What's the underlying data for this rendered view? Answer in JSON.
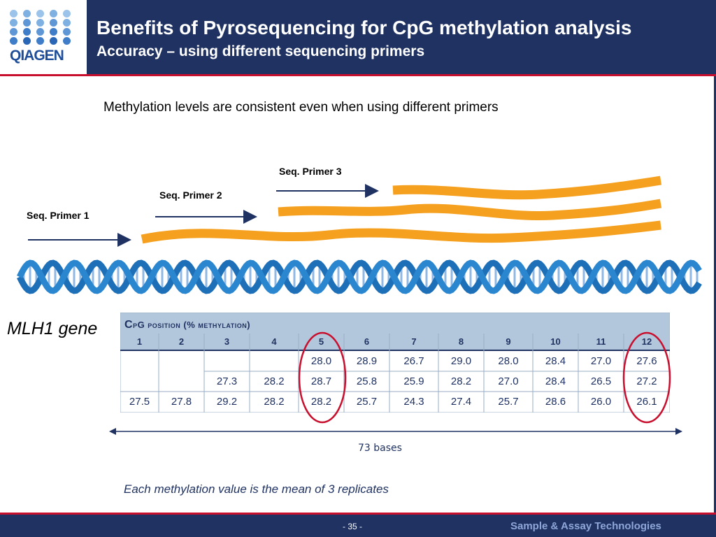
{
  "header": {
    "logo_text": "QIAGEN",
    "title": "Benefits of Pyrosequencing for CpG methylation analysis",
    "subtitle": "Accuracy – using different sequencing primers"
  },
  "intro_text": "Methylation levels are consistent even when using different primers",
  "primers": [
    {
      "label": "Seq. Primer 1"
    },
    {
      "label": "Seq. Primer 2"
    },
    {
      "label": "Seq. Primer 3"
    }
  ],
  "gene_label": "MLH1 gene",
  "table": {
    "caption_prefix": "C",
    "caption_rest": "pG position (% methylation)",
    "positions": [
      "1",
      "2",
      "3",
      "4",
      "5",
      "6",
      "7",
      "8",
      "9",
      "10",
      "11",
      "12"
    ],
    "rows": [
      [
        "",
        "",
        "",
        "",
        "28.0",
        "28.9",
        "26.7",
        "29.0",
        "28.0",
        "28.4",
        "27.0",
        "27.6"
      ],
      [
        "",
        "",
        "27.3",
        "28.2",
        "28.7",
        "25.8",
        "25.9",
        "28.2",
        "27.0",
        "28.4",
        "26.5",
        "27.2"
      ],
      [
        "27.5",
        "27.8",
        "29.2",
        "28.2",
        "28.2",
        "25.7",
        "24.3",
        "27.4",
        "25.7",
        "28.6",
        "26.0",
        "26.1"
      ]
    ],
    "highlighted_positions": [
      "5",
      "12"
    ]
  },
  "span_label": "73 bases",
  "footnote": "Each methylation value is the mean of 3 replicates",
  "footer": {
    "page": "- 35 -",
    "brand": "Sample & Assay Technologies"
  },
  "colors": {
    "navy": "#1f3262",
    "red_rule": "#c8102e",
    "strand_orange": "#f5a01e",
    "dna_blue": "#1d6fb8",
    "table_header": "#b3c7dc",
    "highlight_circle": "#c8102e"
  }
}
